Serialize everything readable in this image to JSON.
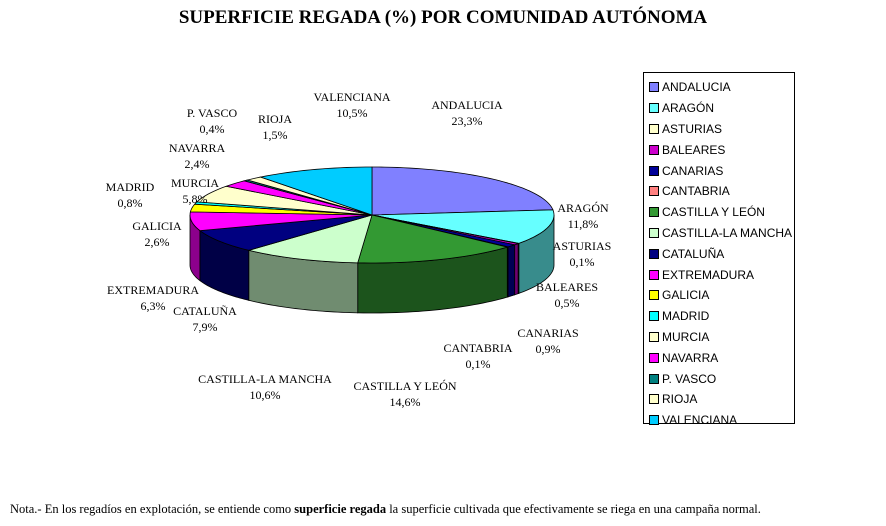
{
  "chart_data": {
    "type": "pie",
    "title": "SUPERFICIE REGADA (%) POR COMUNIDAD AUTÓNOMA",
    "legend_position": "right",
    "three_d": true,
    "categories": [
      "ANDALUCIA",
      "ARAGÓN",
      "ASTURIAS",
      "BALEARES",
      "CANARIAS",
      "CANTABRIA",
      "CASTILLA Y LEÓN",
      "CASTILLA-LA MANCHA",
      "CATALUÑA",
      "EXTREMADURA",
      "GALICIA",
      "MADRID",
      "MURCIA",
      "NAVARRA",
      "P. VASCO",
      "RIOJA",
      "VALENCIANA"
    ],
    "values": [
      23.3,
      11.8,
      0.1,
      0.5,
      0.9,
      0.1,
      14.6,
      10.6,
      7.9,
      6.3,
      2.6,
      0.8,
      5.8,
      2.4,
      0.4,
      1.5,
      10.5
    ],
    "value_labels": [
      "23,3%",
      "11,8%",
      "0,1%",
      "0,5%",
      "0,9%",
      "0,1%",
      "14,6%",
      "10,6%",
      "7,9%",
      "6,3%",
      "2,6%",
      "0,8%",
      "5,8%",
      "2,4%",
      "0,4%",
      "1,5%",
      "10,5%"
    ],
    "colors": [
      "#8080ff",
      "#66ffff",
      "#ffffcc",
      "#cc00cc",
      "#000099",
      "#ff8080",
      "#339933",
      "#ccffcc",
      "#000080",
      "#ff00ff",
      "#ffff00",
      "#00ffff",
      "#ffffcc",
      "#ff00ff",
      "#008080",
      "#ffffcc",
      "#00ccff"
    ]
  },
  "note": {
    "prefix": "Nota.- En los regadíos en explotación, se entiende como ",
    "bold": "superficie regada",
    "suffix": " la superficie cultivada que efectivamente se riega en una campaña normal."
  }
}
